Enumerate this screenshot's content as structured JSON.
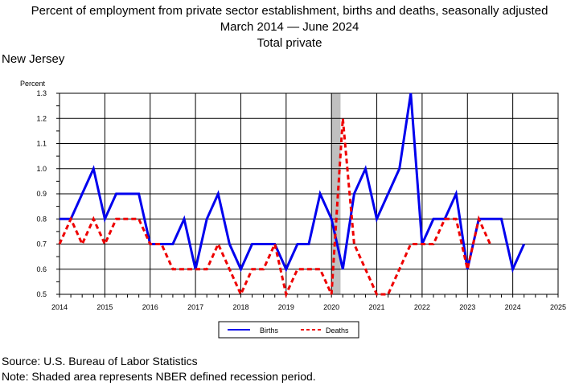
{
  "header": {
    "title_line1": "Percent of employment from private sector establishment, births and deaths, seasonally adjusted",
    "title_line2": "March 2014 — June 2024",
    "title_line3": "Total private",
    "region": "New Jersey"
  },
  "footer": {
    "source": "Source: U.S. Bureau of Labor Statistics",
    "note": "Note: Shaded area represents NBER defined recession period."
  },
  "colors": {
    "births": "#0000ee",
    "deaths": "#ee0000",
    "recession": "#c0c0c0"
  },
  "chart_data": {
    "type": "line",
    "ylabel": "Percent",
    "xlim": [
      2014,
      2025
    ],
    "ylim": [
      0.5,
      1.3
    ],
    "x_ticks": [
      "2014",
      "2015",
      "2016",
      "2017",
      "2018",
      "2019",
      "2020",
      "2021",
      "2022",
      "2023",
      "2024",
      "2025"
    ],
    "y_ticks": [
      "0.5",
      "0.6",
      "0.7",
      "0.8",
      "0.9",
      "1.0",
      "1.1",
      "1.2",
      "1.3"
    ],
    "grid": true,
    "legend_position": "bottom-center",
    "recession": [
      2020.0,
      2020.2
    ],
    "series": [
      {
        "name": "Births",
        "style": "solid",
        "points": [
          [
            2014.0,
            0.8
          ],
          [
            2014.25,
            0.8
          ],
          [
            2014.5,
            0.9
          ],
          [
            2014.75,
            1.0
          ],
          [
            2015.0,
            0.8
          ],
          [
            2015.25,
            0.9
          ],
          [
            2015.5,
            0.9
          ],
          [
            2015.75,
            0.9
          ],
          [
            2016.0,
            0.7
          ],
          [
            2016.25,
            0.7
          ],
          [
            2016.5,
            0.7
          ],
          [
            2016.75,
            0.8
          ],
          [
            2017.0,
            0.6
          ],
          [
            2017.25,
            0.8
          ],
          [
            2017.5,
            0.9
          ],
          [
            2017.75,
            0.7
          ],
          [
            2018.0,
            0.6
          ],
          [
            2018.25,
            0.7
          ],
          [
            2018.5,
            0.7
          ],
          [
            2018.75,
            0.7
          ],
          [
            2019.0,
            0.6
          ],
          [
            2019.25,
            0.7
          ],
          [
            2019.5,
            0.7
          ],
          [
            2019.75,
            0.9
          ],
          [
            2020.0,
            0.8
          ],
          [
            2020.25,
            0.6
          ],
          [
            2020.5,
            0.9
          ],
          [
            2020.75,
            1.0
          ],
          [
            2021.0,
            0.8
          ],
          [
            2021.25,
            0.9
          ],
          [
            2021.5,
            1.0
          ],
          [
            2021.75,
            1.3
          ],
          [
            2022.0,
            0.7
          ],
          [
            2022.25,
            0.8
          ],
          [
            2022.5,
            0.8
          ],
          [
            2022.75,
            0.9
          ],
          [
            2023.0,
            0.6
          ],
          [
            2023.25,
            0.8
          ],
          [
            2023.5,
            0.8
          ],
          [
            2023.75,
            0.8
          ],
          [
            2024.0,
            0.6
          ],
          [
            2024.25,
            0.7
          ]
        ]
      },
      {
        "name": "Deaths",
        "style": "dashed",
        "points": [
          [
            2014.0,
            0.7
          ],
          [
            2014.25,
            0.8
          ],
          [
            2014.5,
            0.7
          ],
          [
            2014.75,
            0.8
          ],
          [
            2015.0,
            0.7
          ],
          [
            2015.25,
            0.8
          ],
          [
            2015.5,
            0.8
          ],
          [
            2015.75,
            0.8
          ],
          [
            2016.0,
            0.7
          ],
          [
            2016.25,
            0.7
          ],
          [
            2016.5,
            0.6
          ],
          [
            2016.75,
            0.6
          ],
          [
            2017.0,
            0.6
          ],
          [
            2017.25,
            0.6
          ],
          [
            2017.5,
            0.7
          ],
          [
            2017.75,
            0.6
          ],
          [
            2018.0,
            0.5
          ],
          [
            2018.25,
            0.6
          ],
          [
            2018.5,
            0.6
          ],
          [
            2018.75,
            0.7
          ],
          [
            2019.0,
            0.5
          ],
          [
            2019.25,
            0.6
          ],
          [
            2019.5,
            0.6
          ],
          [
            2019.75,
            0.6
          ],
          [
            2020.0,
            0.5
          ],
          [
            2020.25,
            1.2
          ],
          [
            2020.5,
            0.7
          ],
          [
            2020.75,
            0.6
          ],
          [
            2021.0,
            0.5
          ],
          [
            2021.25,
            0.5
          ],
          [
            2021.5,
            0.6
          ],
          [
            2021.75,
            0.7
          ],
          [
            2022.0,
            0.7
          ],
          [
            2022.25,
            0.7
          ],
          [
            2022.5,
            0.8
          ],
          [
            2022.75,
            0.8
          ],
          [
            2023.0,
            0.6
          ],
          [
            2023.25,
            0.8
          ],
          [
            2023.5,
            0.7
          ]
        ]
      }
    ]
  }
}
